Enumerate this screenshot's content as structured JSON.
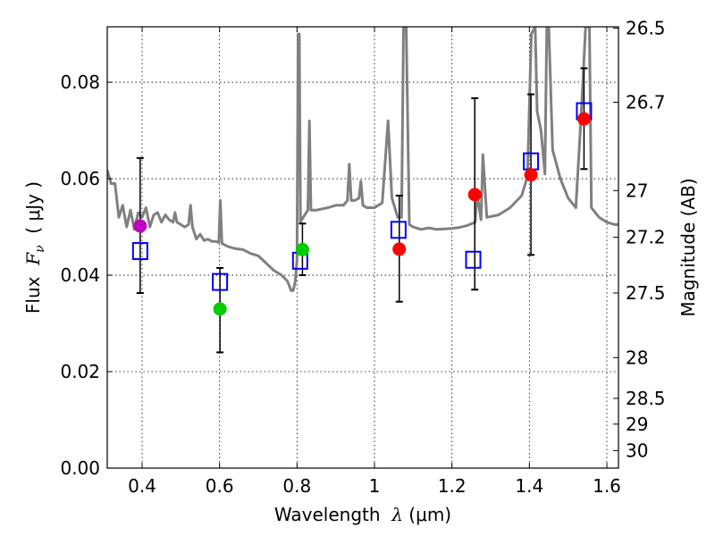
{
  "chart_data": {
    "type": "scatter",
    "xlabel_prefix": "Wavelength  ",
    "xlabel_symbol": "λ",
    "xlabel_unit": " (μm)",
    "ylabel_prefix": "Flux  ",
    "ylabel_symbol": "F",
    "ylabel_subscript": "ν",
    "ylabel_unit": "  ( μJy )",
    "ylabel_right": "Magnitude (AB)",
    "xlim": [
      0.31,
      1.63
    ],
    "ylim": [
      0.0,
      0.0915
    ],
    "grid": true,
    "x_ticks": [
      0.4,
      0.6,
      0.8,
      1.0,
      1.2,
      1.4,
      1.6
    ],
    "x_tick_labels": [
      "0.4",
      "0.6",
      "0.8",
      "1",
      "1.2",
      "1.4",
      "1.6"
    ],
    "y_ticks": [
      0.0,
      0.02,
      0.04,
      0.06,
      0.08
    ],
    "y_tick_labels": [
      "0.00",
      "0.02",
      "0.04",
      "0.06",
      "0.08"
    ],
    "right_ticks": [
      {
        "label": "26.5",
        "mag": 26.5
      },
      {
        "label": "26.7",
        "mag": 26.7
      },
      {
        "label": "27",
        "mag": 27.0
      },
      {
        "label": "27.2",
        "mag": 27.2
      },
      {
        "label": "27.5",
        "mag": 27.5
      },
      {
        "label": "28",
        "mag": 28.0
      },
      {
        "label": "28.5",
        "mag": 28.5
      },
      {
        "label": "29",
        "mag": 29.0
      },
      {
        "label": "30",
        "mag": 30.0
      }
    ],
    "colors": {
      "sed": "#808080",
      "model": "#0000ff",
      "errorbar": "#000000",
      "point_red": "#ff0000",
      "point_green": "#00cc00",
      "point_magenta": "#bf00bf"
    },
    "observed": [
      {
        "x": 0.395,
        "y": 0.0502,
        "err_low": 0.0363,
        "err_high": 0.0643,
        "color": "magenta"
      },
      {
        "x": 0.601,
        "y": 0.033,
        "err_low": 0.024,
        "err_high": 0.0415,
        "color": "green"
      },
      {
        "x": 0.814,
        "y": 0.0453,
        "err_low": 0.04,
        "err_high": 0.0507,
        "color": "green"
      },
      {
        "x": 1.064,
        "y": 0.0454,
        "err_low": 0.0345,
        "err_high": 0.0565,
        "color": "red"
      },
      {
        "x": 1.259,
        "y": 0.0567,
        "err_low": 0.037,
        "err_high": 0.0767,
        "color": "red"
      },
      {
        "x": 1.404,
        "y": 0.0608,
        "err_low": 0.0442,
        "err_high": 0.0775,
        "color": "red"
      },
      {
        "x": 1.541,
        "y": 0.0724,
        "err_low": 0.062,
        "err_high": 0.0829,
        "color": "red"
      }
    ],
    "model": [
      {
        "x": 0.395,
        "y": 0.045
      },
      {
        "x": 0.601,
        "y": 0.0386
      },
      {
        "x": 0.808,
        "y": 0.043
      },
      {
        "x": 1.062,
        "y": 0.0494
      },
      {
        "x": 1.255,
        "y": 0.0432
      },
      {
        "x": 1.404,
        "y": 0.0636
      },
      {
        "x": 1.541,
        "y": 0.074
      }
    ],
    "sed_spectrum": [
      [
        0.31,
        0.0618
      ],
      [
        0.32,
        0.059
      ],
      [
        0.33,
        0.059
      ],
      [
        0.335,
        0.0555
      ],
      [
        0.34,
        0.052
      ],
      [
        0.35,
        0.0545
      ],
      [
        0.36,
        0.05
      ],
      [
        0.37,
        0.0535
      ],
      [
        0.38,
        0.0495
      ],
      [
        0.39,
        0.053
      ],
      [
        0.4,
        0.052
      ],
      [
        0.41,
        0.054
      ],
      [
        0.42,
        0.05
      ],
      [
        0.43,
        0.0525
      ],
      [
        0.44,
        0.053
      ],
      [
        0.45,
        0.051
      ],
      [
        0.46,
        0.0525
      ],
      [
        0.47,
        0.0515
      ],
      [
        0.48,
        0.051
      ],
      [
        0.485,
        0.053
      ],
      [
        0.49,
        0.051
      ],
      [
        0.5,
        0.0505
      ],
      [
        0.51,
        0.05
      ],
      [
        0.52,
        0.0505
      ],
      [
        0.525,
        0.0545
      ],
      [
        0.53,
        0.05
      ],
      [
        0.54,
        0.0475
      ],
      [
        0.55,
        0.0485
      ],
      [
        0.56,
        0.0472
      ],
      [
        0.57,
        0.0475
      ],
      [
        0.58,
        0.047
      ],
      [
        0.59,
        0.047
      ],
      [
        0.598,
        0.0468
      ],
      [
        0.602,
        0.0555
      ],
      [
        0.606,
        0.0466
      ],
      [
        0.62,
        0.046
      ],
      [
        0.64,
        0.0455
      ],
      [
        0.66,
        0.0453
      ],
      [
        0.68,
        0.0445
      ],
      [
        0.7,
        0.044
      ],
      [
        0.72,
        0.0425
      ],
      [
        0.74,
        0.041
      ],
      [
        0.76,
        0.04
      ],
      [
        0.775,
        0.0388
      ],
      [
        0.785,
        0.0368
      ],
      [
        0.79,
        0.0368
      ],
      [
        0.795,
        0.0385
      ],
      [
        0.8,
        0.043
      ],
      [
        0.803,
        0.09
      ],
      [
        0.806,
        0.09
      ],
      [
        0.809,
        0.051
      ],
      [
        0.812,
        0.0515
      ],
      [
        0.82,
        0.0525
      ],
      [
        0.828,
        0.0535
      ],
      [
        0.832,
        0.072
      ],
      [
        0.836,
        0.0535
      ],
      [
        0.85,
        0.0535
      ],
      [
        0.88,
        0.054
      ],
      [
        0.9,
        0.0545
      ],
      [
        0.92,
        0.0545
      ],
      [
        0.93,
        0.0555
      ],
      [
        0.935,
        0.063
      ],
      [
        0.94,
        0.0555
      ],
      [
        0.95,
        0.0555
      ],
      [
        0.96,
        0.056
      ],
      [
        0.965,
        0.0595
      ],
      [
        0.97,
        0.0545
      ],
      [
        0.98,
        0.054
      ],
      [
        1.0,
        0.054
      ],
      [
        1.01,
        0.0545
      ],
      [
        1.02,
        0.055
      ],
      [
        1.035,
        0.072
      ],
      [
        1.045,
        0.056
      ],
      [
        1.06,
        0.052
      ],
      [
        1.07,
        0.052
      ],
      [
        1.075,
        0.0915
      ],
      [
        1.082,
        0.0915
      ],
      [
        1.09,
        0.0505
      ],
      [
        1.1,
        0.05
      ],
      [
        1.12,
        0.0495
      ],
      [
        1.14,
        0.0498
      ],
      [
        1.16,
        0.0495
      ],
      [
        1.18,
        0.0496
      ],
      [
        1.2,
        0.0497
      ],
      [
        1.22,
        0.0499
      ],
      [
        1.24,
        0.0503
      ],
      [
        1.26,
        0.051
      ],
      [
        1.265,
        0.057
      ],
      [
        1.275,
        0.0515
      ],
      [
        1.28,
        0.065
      ],
      [
        1.29,
        0.052
      ],
      [
        1.32,
        0.0525
      ],
      [
        1.35,
        0.054
      ],
      [
        1.38,
        0.0565
      ],
      [
        1.395,
        0.0605
      ],
      [
        1.405,
        0.09
      ],
      [
        1.415,
        0.0915
      ],
      [
        1.42,
        0.074
      ],
      [
        1.43,
        0.07
      ],
      [
        1.44,
        0.061
      ],
      [
        1.445,
        0.0915
      ],
      [
        1.45,
        0.0915
      ],
      [
        1.46,
        0.066
      ],
      [
        1.48,
        0.06
      ],
      [
        1.5,
        0.056
      ],
      [
        1.52,
        0.054
      ],
      [
        1.535,
        0.075
      ],
      [
        1.545,
        0.0915
      ],
      [
        1.555,
        0.0915
      ],
      [
        1.56,
        0.054
      ],
      [
        1.58,
        0.052
      ],
      [
        1.6,
        0.051
      ],
      [
        1.62,
        0.0505
      ],
      [
        1.63,
        0.0505
      ]
    ]
  }
}
